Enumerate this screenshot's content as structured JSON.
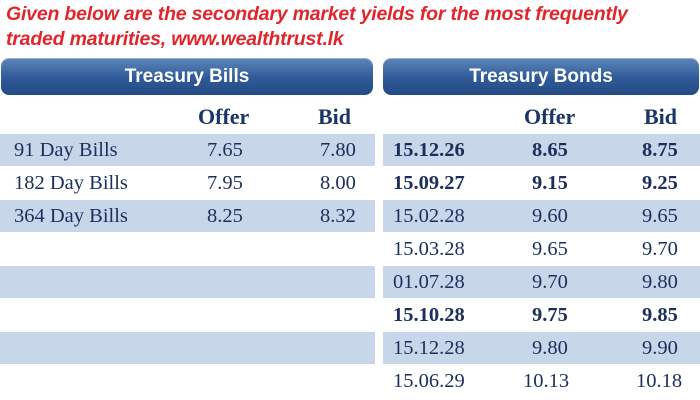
{
  "intro_lines": [
    "Given below are the secondary market yields for the most frequently",
    "traded maturities, www.wealthtrust.lk"
  ],
  "bills": {
    "title": "Treasury Bills",
    "columns": [
      "Offer",
      "Bid"
    ],
    "rows": [
      {
        "label": "91 Day Bills",
        "offer": "7.65",
        "bid": "7.80"
      },
      {
        "label": "182 Day Bills",
        "offer": "7.95",
        "bid": "8.00"
      },
      {
        "label": "364 Day Bills",
        "offer": "8.25",
        "bid": "8.32"
      }
    ]
  },
  "bonds": {
    "title": "Treasury Bonds",
    "columns": [
      "Offer",
      "Bid"
    ],
    "rows": [
      {
        "maturity": "15.12.26",
        "offer": "8.65",
        "bid": "8.75",
        "bold": true
      },
      {
        "maturity": "15.09.27",
        "offer": "9.15",
        "bid": "9.25",
        "bold": true
      },
      {
        "maturity": "15.02.28",
        "offer": "9.60",
        "bid": "9.65",
        "bold": false
      },
      {
        "maturity": "15.03.28",
        "offer": "9.65",
        "bid": "9.70",
        "bold": false
      },
      {
        "maturity": "01.07.28",
        "offer": "9.70",
        "bid": "9.80",
        "bold": false
      },
      {
        "maturity": "15.10.28",
        "offer": "9.75",
        "bid": "9.85",
        "bold": true
      },
      {
        "maturity": "15.12.28",
        "offer": "9.80",
        "bid": "9.90",
        "bold": false
      },
      {
        "maturity": "15.06.29",
        "offer": "10.13",
        "bid": "10.18",
        "bold": false
      }
    ]
  },
  "colors": {
    "intro_text": "#e0262c",
    "header_blue": "#2f5a97",
    "row_shade": "#c8d6ea",
    "table_text": "#1b2f5a"
  }
}
